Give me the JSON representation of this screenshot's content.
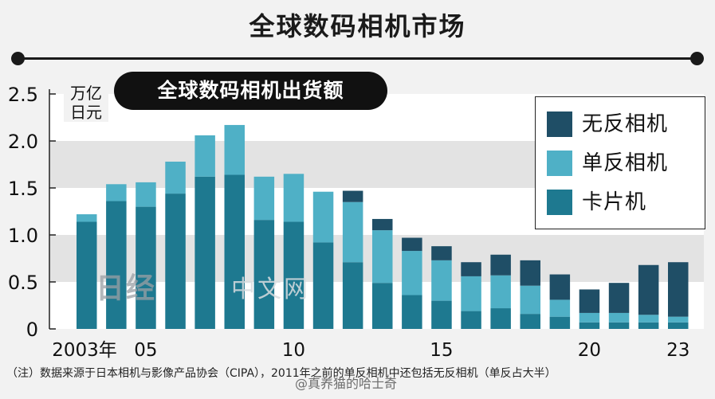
{
  "header": {
    "title": "全球数码相机市场"
  },
  "chart_data": {
    "type": "bar",
    "stacked": true,
    "title": "全球数码相机出货额",
    "unit_label": "万亿\n日元",
    "ylim": [
      0,
      2.5
    ],
    "yticks": [
      "0",
      "0.5",
      "1.0",
      "1.5",
      "2.0",
      "2.5"
    ],
    "x_tick_labels": [
      {
        "index": 0,
        "label": "2003年"
      },
      {
        "index": 2,
        "label": "05"
      },
      {
        "index": 7,
        "label": "10"
      },
      {
        "index": 12,
        "label": "15"
      },
      {
        "index": 17,
        "label": "20"
      },
      {
        "index": 20,
        "label": "23"
      }
    ],
    "categories": [
      "2003",
      "2004",
      "2005",
      "2006",
      "2007",
      "2008",
      "2009",
      "2010",
      "2011",
      "2012",
      "2013",
      "2014",
      "2015",
      "2016",
      "2017",
      "2018",
      "2019",
      "2020",
      "2021",
      "2022",
      "2023"
    ],
    "series": [
      {
        "name": "卡片机",
        "color": "#1e7990",
        "values": [
          1.14,
          1.36,
          1.3,
          1.44,
          1.62,
          1.64,
          1.16,
          1.14,
          0.92,
          0.71,
          0.49,
          0.36,
          0.3,
          0.19,
          0.22,
          0.16,
          0.13,
          0.07,
          0.07,
          0.07,
          0.07
        ]
      },
      {
        "name": "单反相机",
        "color": "#4fb0c6",
        "values": [
          0.08,
          0.18,
          0.26,
          0.34,
          0.44,
          0.53,
          0.46,
          0.51,
          0.54,
          0.64,
          0.56,
          0.47,
          0.43,
          0.37,
          0.35,
          0.3,
          0.18,
          0.1,
          0.1,
          0.08,
          0.06
        ]
      },
      {
        "name": "无反相机",
        "color": "#1f4e66",
        "values": [
          0,
          0,
          0,
          0,
          0,
          0,
          0,
          0,
          0,
          0.12,
          0.12,
          0.14,
          0.15,
          0.15,
          0.22,
          0.27,
          0.27,
          0.25,
          0.32,
          0.53,
          0.58
        ]
      }
    ],
    "legend": {
      "placement": "top-right",
      "order": [
        "无反相机",
        "单反相机",
        "卡片机"
      ]
    },
    "background_bands": true
  },
  "footnote": "（注）数据来源于日本相机与影像产品协会（CIPA），2011年之前的单反相机中还包括无反相机（单反占大半）",
  "watermarks": {
    "nikkei_logo": "日经",
    "nikkei_text": "中文网",
    "weibo": "@真养猫的哈士奇"
  }
}
